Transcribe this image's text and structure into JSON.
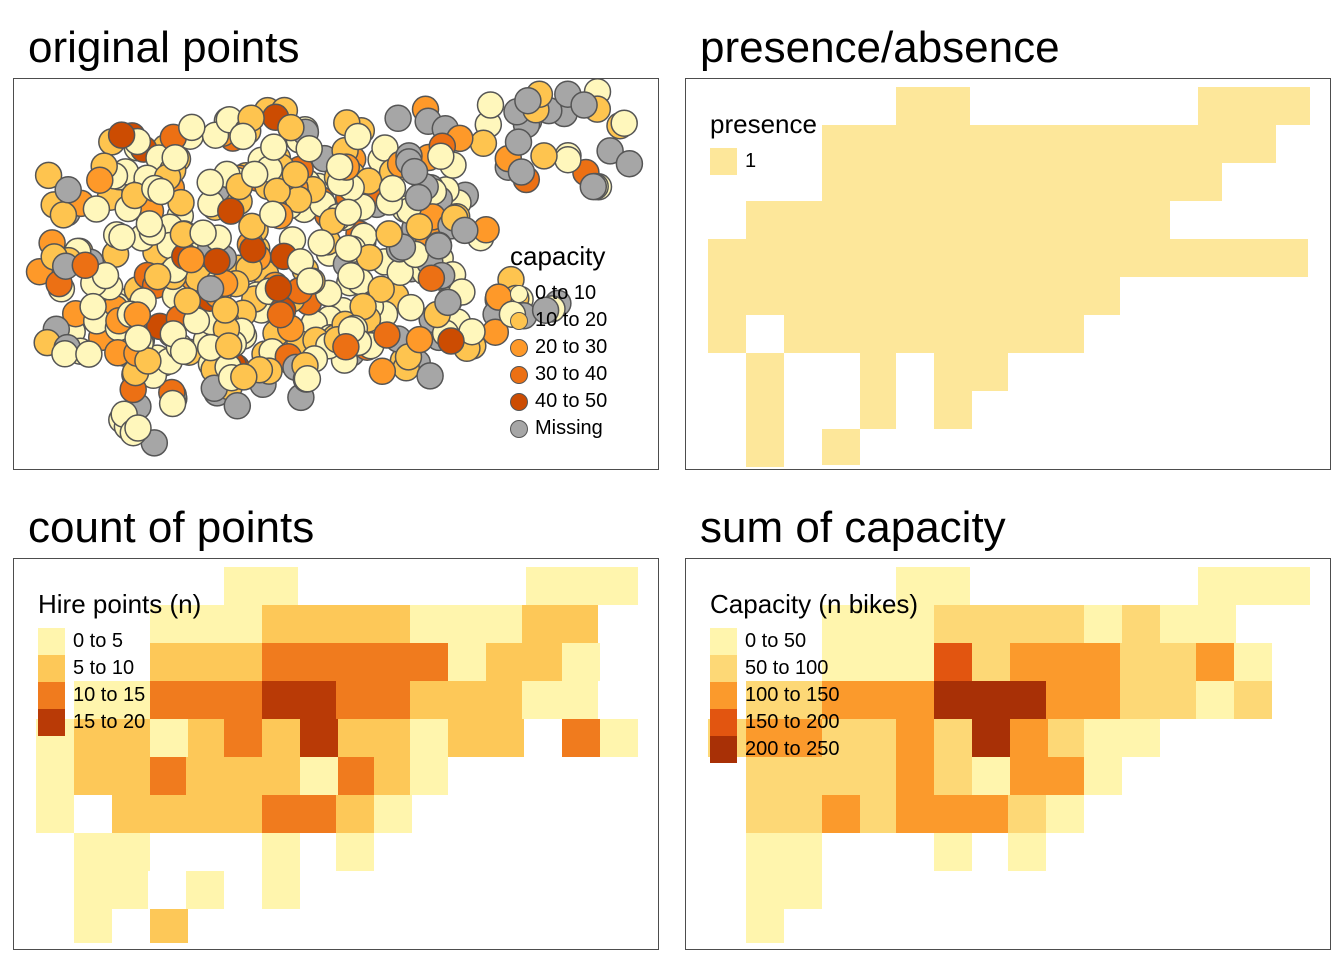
{
  "panels": {
    "original": {
      "title": "original points",
      "legend": {
        "title": "capacity",
        "items": [
          {
            "label": "0 to 10",
            "color": "#FFF7BC"
          },
          {
            "label": "10 to 20",
            "color": "#FEC44F"
          },
          {
            "label": "20 to 30",
            "color": "#FE9929"
          },
          {
            "label": "30 to 40",
            "color": "#EC7014"
          },
          {
            "label": "40 to 50",
            "color": "#CC4C02"
          },
          {
            "label": "Missing",
            "color": "#A6A6A6"
          }
        ]
      }
    },
    "presence": {
      "title": "presence/absence",
      "legend": {
        "title": "presence",
        "items": [
          {
            "label": "1",
            "color": "#FDE79A"
          }
        ]
      }
    },
    "count": {
      "title": "count of points",
      "legend": {
        "title": "Hire points (n)",
        "items": [
          {
            "label": "0 to 5",
            "color": "#FFF5AD"
          },
          {
            "label": "5 to 10",
            "color": "#FDC858"
          },
          {
            "label": "10 to 15",
            "color": "#F07B1E"
          },
          {
            "label": "15 to 20",
            "color": "#B93A06"
          }
        ]
      }
    },
    "sum": {
      "title": "sum of capacity",
      "legend": {
        "title": "Capacity (n bikes)",
        "items": [
          {
            "label": "0 to 50",
            "color": "#FFF5AD"
          },
          {
            "label": "50 to 100",
            "color": "#FDD876"
          },
          {
            "label": "100 to 150",
            "color": "#FB9A2C"
          },
          {
            "label": "150 to 200",
            "color": "#E25510"
          },
          {
            "label": "200 to 250",
            "color": "#A83006"
          }
        ]
      }
    }
  }
}
